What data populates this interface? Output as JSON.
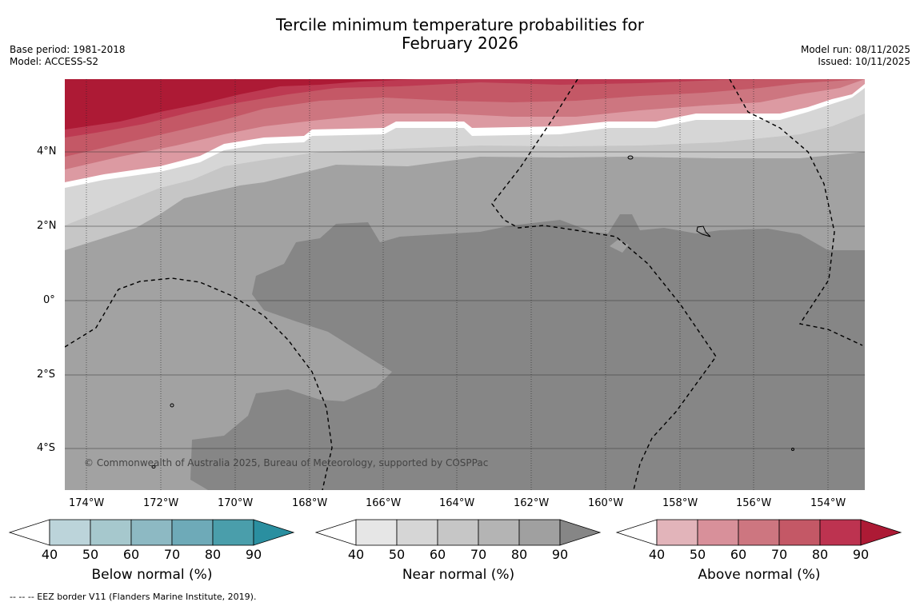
{
  "header": {
    "title_line1": "Tercile minimum temperature probabilities for",
    "title_line2": "February 2026",
    "base_period": "Base period: 1981-2018",
    "model": "Model: ACCESS-S2",
    "model_run": "Model run: 08/11/2025",
    "issued": "Issued: 10/11/2025"
  },
  "map": {
    "lon_labels": [
      "174°W",
      "172°W",
      "170°W",
      "168°W",
      "166°W",
      "164°W",
      "162°W",
      "160°W",
      "158°W",
      "156°W",
      "154°W"
    ],
    "lat_labels": [
      "4°N",
      "2°N",
      "0°",
      "2°S",
      "4°S"
    ],
    "copyright": "© Commonwealth of Australia 2025, Bureau of Meteorology, supported by COSPPac"
  },
  "colorbars": [
    {
      "label": "Below normal (%)",
      "ticks": [
        "40",
        "50",
        "60",
        "70",
        "80",
        "90"
      ],
      "colors": [
        "#ffffff",
        "#bcd4da",
        "#a6c8cd",
        "#8db9c3",
        "#6eaab8",
        "#4a9eab",
        "#2a8fa0"
      ]
    },
    {
      "label": "Near normal (%)",
      "ticks": [
        "40",
        "50",
        "60",
        "70",
        "80",
        "90"
      ],
      "colors": [
        "#ffffff",
        "#e6e6e6",
        "#d6d6d6",
        "#c6c6c6",
        "#b4b4b4",
        "#a0a0a0",
        "#868686"
      ]
    },
    {
      "label": "Above normal (%)",
      "ticks": [
        "40",
        "50",
        "60",
        "70",
        "80",
        "90"
      ],
      "colors": [
        "#ffffff",
        "#e2b4ba",
        "#d8909a",
        "#cd7680",
        "#c45866",
        "#bd3350",
        "#ad1a35"
      ]
    }
  ],
  "footer": "--  --  -- EEZ border V11 (Flanders Marine Institute, 2019)."
}
